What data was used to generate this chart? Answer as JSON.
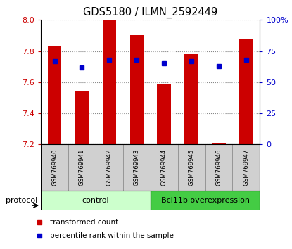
{
  "title": "GDS5180 / ILMN_2592449",
  "samples": [
    "GSM769940",
    "GSM769941",
    "GSM769942",
    "GSM769943",
    "GSM769944",
    "GSM769945",
    "GSM769946",
    "GSM769947"
  ],
  "transformed_counts": [
    7.83,
    7.54,
    8.0,
    7.9,
    7.59,
    7.78,
    7.21,
    7.88
  ],
  "percentile_ranks": [
    67,
    62,
    68,
    68,
    65,
    67,
    63,
    68
  ],
  "y_min": 7.2,
  "y_max": 8.0,
  "y_ticks": [
    7.2,
    7.4,
    7.6,
    7.8,
    8.0
  ],
  "right_y_ticks": [
    0,
    25,
    50,
    75,
    100
  ],
  "right_y_tick_labels": [
    "0",
    "25",
    "50",
    "75",
    "100%"
  ],
  "bar_color": "#cc0000",
  "dot_color": "#0000cc",
  "bar_width": 0.5,
  "control_color": "#ccffcc",
  "bcl_color": "#44cc44",
  "legend_items": [
    {
      "label": "transformed count",
      "color": "#cc0000"
    },
    {
      "label": "percentile rank within the sample",
      "color": "#0000cc"
    }
  ],
  "left_tick_color": "#cc0000",
  "right_tick_color": "#0000cc",
  "grid_color": "#888888",
  "tick_label_fontsize": 8,
  "title_fontsize": 10.5
}
